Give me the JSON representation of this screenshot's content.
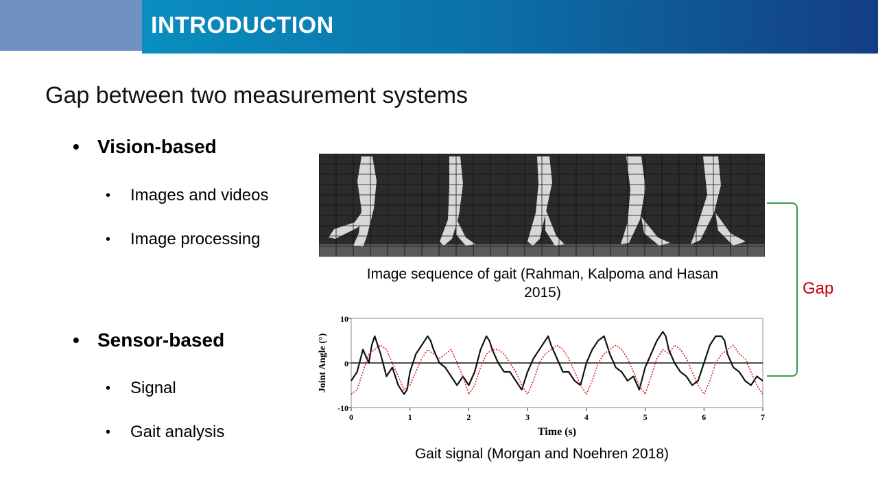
{
  "header": {
    "title": "INTRODUCTION"
  },
  "slide": {
    "title": "Gap between two measurement systems"
  },
  "bullets": [
    {
      "label": "Vision-based",
      "subs": [
        "Images and videos",
        "Image processing"
      ]
    },
    {
      "label": "Sensor-based",
      "subs": [
        "Signal",
        "Gait analysis"
      ]
    }
  ],
  "figures": {
    "image_caption_line1": "Image sequence of gait (Rahman, Kalpoma and Hasan",
    "image_caption_line2": "2015)",
    "signal_caption": "Gait signal (Morgan and Noehren 2018)",
    "gap_label": "Gap"
  },
  "colors": {
    "header_accent": "#7191c1",
    "gap": "#c00000",
    "bracket": "#3a9a4a",
    "series_dashed": "#e02020"
  },
  "chart_data": {
    "type": "line",
    "xlabel": "Time (s)",
    "ylabel": "Joint Angle (°)",
    "xlim": [
      0,
      7
    ],
    "ylim": [
      -10,
      10
    ],
    "x_ticks": [
      "0",
      "1",
      "2",
      "3",
      "4",
      "5",
      "6",
      "7"
    ],
    "y_ticks": [
      "10",
      "0",
      "-10"
    ],
    "series": [
      {
        "style": "solid",
        "color": "#111111",
        "x": [
          0,
          0.1,
          0.2,
          0.3,
          0.35,
          0.4,
          0.5,
          0.6,
          0.7,
          0.8,
          0.9,
          0.95,
          1.0,
          1.1,
          1.2,
          1.3,
          1.35,
          1.4,
          1.5,
          1.6,
          1.7,
          1.8,
          1.9,
          2.0,
          2.1,
          2.2,
          2.3,
          2.35,
          2.4,
          2.5,
          2.6,
          2.7,
          2.8,
          2.9,
          3.0,
          3.1,
          3.2,
          3.3,
          3.35,
          3.4,
          3.5,
          3.6,
          3.7,
          3.8,
          3.9,
          4.0,
          4.1,
          4.2,
          4.3,
          4.35,
          4.4,
          4.5,
          4.6,
          4.7,
          4.8,
          4.9,
          5.0,
          5.1,
          5.2,
          5.3,
          5.35,
          5.4,
          5.5,
          5.6,
          5.7,
          5.8,
          5.9,
          6.0,
          6.1,
          6.2,
          6.3,
          6.35,
          6.4,
          6.5,
          6.6,
          6.7,
          6.8,
          6.9,
          7.0
        ],
        "y": [
          -4,
          -2,
          3,
          0,
          4,
          6,
          2,
          -3,
          -1,
          -5,
          -7,
          -6,
          -2,
          2,
          4,
          6,
          5,
          3,
          0,
          -1,
          -3,
          -5,
          -3,
          -5,
          -2,
          3,
          6,
          5,
          3,
          0,
          -2,
          -2,
          -4,
          -6,
          -2,
          1,
          3,
          5,
          6,
          4,
          1,
          -2,
          -2,
          -4,
          -5,
          0,
          3,
          5,
          6,
          4,
          2,
          -1,
          -2,
          -4,
          -3,
          -6,
          -1,
          2,
          5,
          7,
          6,
          3,
          0,
          -2,
          -3,
          -5,
          -4,
          0,
          4,
          6,
          6,
          5,
          2,
          -1,
          -2,
          -4,
          -5,
          -3,
          -4
        ]
      },
      {
        "style": "dotted",
        "color": "#e02020",
        "x": [
          0,
          0.1,
          0.2,
          0.3,
          0.4,
          0.5,
          0.6,
          0.7,
          0.8,
          0.9,
          1.0,
          1.1,
          1.2,
          1.3,
          1.4,
          1.5,
          1.6,
          1.7,
          1.8,
          1.9,
          2.0,
          2.1,
          2.2,
          2.3,
          2.4,
          2.5,
          2.6,
          2.7,
          2.8,
          2.9,
          3.0,
          3.1,
          3.2,
          3.3,
          3.4,
          3.5,
          3.6,
          3.7,
          3.8,
          3.9,
          4.0,
          4.1,
          4.2,
          4.3,
          4.4,
          4.5,
          4.6,
          4.7,
          4.8,
          4.9,
          5.0,
          5.1,
          5.2,
          5.3,
          5.4,
          5.5,
          5.6,
          5.7,
          5.8,
          5.9,
          6.0,
          6.1,
          6.2,
          6.3,
          6.4,
          6.5,
          6.6,
          6.7,
          6.8,
          6.9,
          7.0
        ],
        "y": [
          -7,
          -6,
          -2,
          2,
          3,
          4,
          3,
          0,
          -3,
          -6,
          -5,
          -2,
          1,
          3,
          2,
          1,
          2,
          3,
          0,
          -3,
          -7,
          -5,
          -1,
          2,
          3,
          3,
          2,
          0,
          -2,
          -5,
          -7,
          -4,
          0,
          2,
          3,
          4,
          3,
          1,
          -2,
          -5,
          -7,
          -4,
          0,
          2,
          3,
          4,
          3,
          1,
          -2,
          -5,
          -7,
          -3,
          1,
          3,
          2,
          4,
          3,
          1,
          -2,
          -5,
          -7,
          -4,
          0,
          2,
          3,
          4,
          2,
          1,
          -2,
          -5,
          -7
        ]
      }
    ]
  }
}
